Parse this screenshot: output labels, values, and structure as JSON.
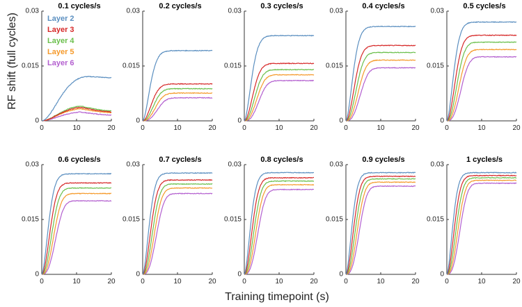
{
  "chart_data": {
    "type": "line",
    "xlabel": "Training timepoint (s)",
    "ylabel": "RF shift (full cycles)",
    "xlim": [
      0,
      20
    ],
    "ylim": [
      0,
      0.03
    ],
    "xticks": [
      "0",
      "10",
      "20"
    ],
    "yticks": [
      "0",
      "0.015",
      "0.03"
    ],
    "grid": false,
    "legend_position": "inside first panel, top-left",
    "series": [
      {
        "name": "Layer 2",
        "color": "#5b8fc0"
      },
      {
        "name": "Layer 3",
        "color": "#d62828"
      },
      {
        "name": "Layer 4",
        "color": "#6abf4b"
      },
      {
        "name": "Layer 5",
        "color": "#f59a2b"
      },
      {
        "name": "Layer 6",
        "color": "#b35fcf"
      }
    ],
    "panels": [
      {
        "title": "0.1 cycles/s",
        "plateau": [
          0.0115,
          0.002,
          0.0022,
          0.0018,
          0.0013
        ]
      },
      {
        "title": "0.2 cycles/s",
        "plateau": [
          0.0192,
          0.0101,
          0.0088,
          0.0076,
          0.0063
        ]
      },
      {
        "title": "0.3 cycles/s",
        "plateau": [
          0.0233,
          0.0157,
          0.014,
          0.0126,
          0.011
        ]
      },
      {
        "title": "0.4 cycles/s",
        "plateau": [
          0.0258,
          0.0206,
          0.0187,
          0.0166,
          0.0145
        ]
      },
      {
        "title": "0.5 cycles/s",
        "plateau": [
          0.027,
          0.0234,
          0.0215,
          0.0195,
          0.0175
        ]
      },
      {
        "title": "0.6 cycles/s",
        "plateau": [
          0.0275,
          0.025,
          0.0236,
          0.0221,
          0.0201
        ]
      },
      {
        "title": "0.7 cycles/s",
        "plateau": [
          0.0277,
          0.0258,
          0.0247,
          0.0236,
          0.0221
        ]
      },
      {
        "title": "0.8 cycles/s",
        "plateau": [
          0.0278,
          0.0264,
          0.0255,
          0.0245,
          0.0232
        ]
      },
      {
        "title": "0.9 cycles/s",
        "plateau": [
          0.0278,
          0.0268,
          0.0261,
          0.0252,
          0.0241
        ]
      },
      {
        "title": "1 cycles/s",
        "plateau": [
          0.0278,
          0.027,
          0.0264,
          0.0257,
          0.0249
        ]
      }
    ]
  }
}
